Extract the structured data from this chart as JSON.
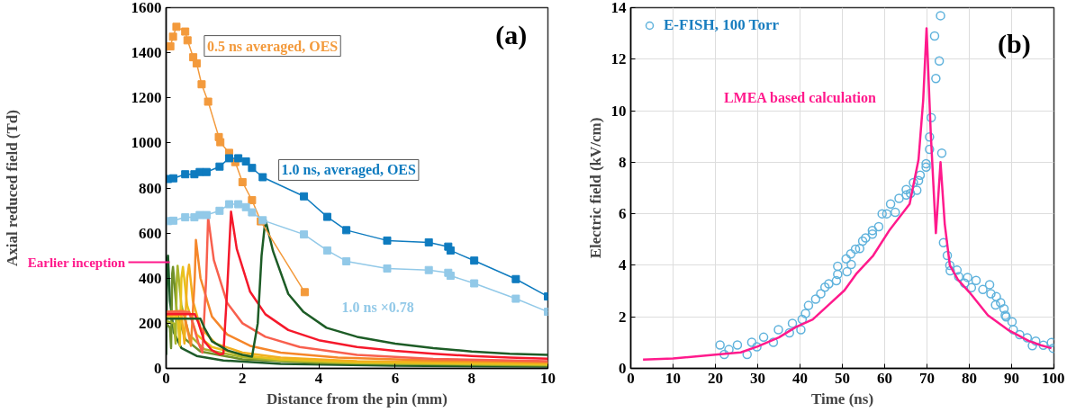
{
  "chart_data": [
    {
      "type": "line",
      "xlabel": "Distance from the pin (mm)",
      "ylabel": "Axial reduced field (Td)",
      "xlim": [
        0,
        10
      ],
      "ylim": [
        0,
        1600
      ],
      "xticks": [
        0,
        2,
        4,
        6,
        8,
        10
      ],
      "yticks": [
        0,
        200,
        400,
        600,
        800,
        1000,
        1200,
        1400,
        1600
      ],
      "grid": false,
      "legend": false,
      "line_style": "solid",
      "annotations": [
        "(a)",
        {
          "text": "Earlier inception",
          "x": 0,
          "y": 470
        }
      ],
      "series": [
        {
          "color": "#1e5b2a",
          "x": [
            0,
            0.03,
            0.05,
            0.1,
            0.2,
            0.4,
            0.8,
            1.5,
            3,
            6,
            10
          ],
          "values": [
            60,
            480,
            500,
            300,
            160,
            90,
            55,
            35,
            20,
            12,
            8
          ]
        },
        {
          "color": "#6f8f2a",
          "x": [
            0,
            0.1,
            0.13,
            0.16,
            0.18,
            0.28,
            0.5,
            0.9,
            2,
            4,
            10
          ],
          "values": [
            200,
            180,
            90,
            420,
            450,
            250,
            130,
            75,
            40,
            24,
            12
          ]
        },
        {
          "color": "#a9b52c",
          "x": [
            0,
            0.2,
            0.25,
            0.28,
            0.3,
            0.4,
            0.6,
            1,
            2,
            3,
            5,
            10
          ],
          "values": [
            210,
            200,
            110,
            400,
            455,
            280,
            150,
            85,
            50,
            34,
            23,
            15
          ]
        },
        {
          "color": "#e8c21c",
          "x": [
            0,
            0.3,
            0.36,
            0.4,
            0.44,
            0.55,
            0.8,
            1.2,
            2,
            3,
            5,
            10
          ],
          "values": [
            220,
            230,
            100,
            400,
            450,
            280,
            150,
            95,
            58,
            40,
            27,
            18
          ]
        },
        {
          "color": "#f2b01e",
          "x": [
            0,
            0.4,
            0.48,
            0.55,
            0.6,
            0.7,
            0.9,
            1.3,
            2,
            3,
            5,
            10
          ],
          "values": [
            230,
            240,
            110,
            400,
            460,
            300,
            180,
            110,
            70,
            48,
            32,
            22
          ]
        },
        {
          "color": "#f5862a",
          "x": [
            0,
            0.45,
            0.55,
            0.65,
            0.75,
            0.78,
            0.9,
            1.2,
            1.6,
            2.2,
            3,
            4.5,
            7,
            10
          ],
          "values": [
            250,
            255,
            180,
            100,
            400,
            570,
            400,
            230,
            150,
            100,
            70,
            48,
            35,
            28
          ]
        },
        {
          "color": "#f8604e",
          "x": [
            0,
            0.6,
            0.7,
            0.85,
            0.95,
            1.05,
            1.1,
            1.25,
            1.6,
            2,
            2.6,
            3.5,
            5,
            7,
            10
          ],
          "values": [
            250,
            250,
            200,
            110,
            70,
            400,
            670,
            480,
            290,
            200,
            140,
            95,
            60,
            42,
            32
          ]
        },
        {
          "color": "#f5192b",
          "x": [
            0,
            0.75,
            0.85,
            1.0,
            1.2,
            1.4,
            1.5,
            1.6,
            1.7,
            1.85,
            2.2,
            2.6,
            3.2,
            4,
            5,
            6,
            7,
            8,
            9,
            10
          ],
          "values": [
            240,
            240,
            200,
            120,
            80,
            62,
            65,
            350,
            695,
            530,
            340,
            240,
            170,
            125,
            95,
            78,
            65,
            55,
            48,
            43
          ]
        },
        {
          "color": "#1d5c26",
          "x": [
            0,
            0.9,
            1.0,
            1.2,
            1.6,
            2.0,
            2.25,
            2.4,
            2.5,
            2.6,
            2.8,
            3.2,
            3.6,
            4.2,
            5,
            6,
            7,
            8,
            9,
            10
          ],
          "values": [
            220,
            220,
            180,
            120,
            80,
            60,
            52,
            200,
            500,
            660,
            520,
            330,
            250,
            180,
            140,
            110,
            90,
            75,
            65,
            60
          ]
        },
        {
          "name": "0.5 ns averaged, OES",
          "color": "#f39a3c",
          "marker": "square",
          "x": [
            0.11,
            0.18,
            0.27,
            0.5,
            0.56,
            0.71,
            0.8,
            0.93,
            1.1,
            1.38,
            1.42,
            1.65,
            1.81,
            2.0,
            2.25,
            2.48,
            3.63
          ],
          "values": [
            1428,
            1471,
            1515,
            1494,
            1455,
            1380,
            1353,
            1260,
            1183,
            1026,
            1003,
            956,
            915,
            826,
            746,
            652,
            338
          ]
        },
        {
          "name": "1.0 ns, averaged, OES",
          "color": "#0e7bbf",
          "marker": "square",
          "x": [
            0.05,
            0.19,
            0.5,
            0.74,
            0.88,
            1.06,
            1.4,
            1.65,
            1.89,
            2.09,
            2.25,
            2.53,
            3.61,
            4.22,
            4.72,
            5.79,
            6.88,
            7.39,
            7.45,
            8.07,
            9.16,
            10
          ],
          "values": [
            840,
            843,
            861,
            861,
            871,
            871,
            895,
            932,
            932,
            918,
            889,
            848,
            763,
            672,
            613,
            567,
            559,
            540,
            523,
            478,
            396,
            319
          ]
        },
        {
          "name": "1.0 ns ×0.78",
          "color": "#92c9e8",
          "marker": "square",
          "x": [
            0.05,
            0.19,
            0.5,
            0.74,
            0.88,
            1.06,
            1.4,
            1.65,
            1.89,
            2.09,
            2.25,
            2.53,
            3.61,
            4.22,
            4.72,
            5.79,
            6.88,
            7.39,
            7.45,
            8.07,
            9.16,
            10
          ],
          "values": [
            653,
            655,
            670,
            670,
            680,
            680,
            699,
            728,
            728,
            715,
            692,
            657,
            594,
            523,
            475,
            443,
            436,
            424,
            411,
            377,
            309,
            251
          ]
        }
      ]
    },
    {
      "type": "line",
      "xlabel": "Time (ns)",
      "ylabel": "Electric field (kV/cm)",
      "xlim": [
        0,
        100
      ],
      "ylim": [
        0,
        14
      ],
      "xticks": [
        0,
        10,
        20,
        30,
        40,
        50,
        60,
        70,
        80,
        90,
        100
      ],
      "yticks": [
        0,
        2,
        4,
        6,
        8,
        10,
        12,
        14
      ],
      "grid": true,
      "legend": "top left",
      "line_style": "solid",
      "annotations": [
        "(b)"
      ],
      "series": [
        {
          "name": "E-FISH, 100 Torr",
          "type": "scatter",
          "marker": "circle",
          "color": "#5fb2dc",
          "x": [
            21.1,
            22.1,
            23.2,
            25.2,
            27.5,
            28.6,
            29.8,
            31.4,
            33.7,
            34.9,
            37.5,
            38.2,
            40.2,
            40.5,
            41.3,
            42,
            43.7,
            44.9,
            45.9,
            46.8,
            48.6,
            48.9,
            48.9,
            50.9,
            51.1,
            52.1,
            52,
            53.1,
            54.1,
            54.8,
            55.5,
            57.1,
            57.1,
            58.6,
            59.4,
            60.5,
            61.4,
            62.5,
            63.4,
            65.1,
            65.1,
            66.1,
            66.8,
            67.6,
            68,
            68.4,
            69.8,
            69.8,
            70.6,
            70.6,
            71,
            71.8,
            72.1,
            72.9,
            73.2,
            73.5,
            73.9,
            74.8,
            75.4,
            75.5,
            77.1,
            77.5,
            78.9,
            79.6,
            80.5,
            81.6,
            83.2,
            84.8,
            85.1,
            86.2,
            86.4,
            87.4,
            88.2,
            88.5,
            88.7,
            90.1,
            90.4,
            91.9,
            93.7,
            94.9,
            95.7,
            97.5,
            99.4,
            99.8
          ],
          "values": [
            0.91,
            0.54,
            0.73,
            0.91,
            0.54,
            1.01,
            0.84,
            1.21,
            1.01,
            1.5,
            1.38,
            1.75,
            1.5,
            1.9,
            2.13,
            2.44,
            2.69,
            2.9,
            3.15,
            3.28,
            3.4,
            3.65,
            3.96,
            4.25,
            3.75,
            4.03,
            4.44,
            4.63,
            4.65,
            4.94,
            5.06,
            5.21,
            5.35,
            5.5,
            6.0,
            6.0,
            6.38,
            6.06,
            6.6,
            6.94,
            6.73,
            6.79,
            7.21,
            6.91,
            7.29,
            7.5,
            7.94,
            7.81,
            8.5,
            8.98,
            9.73,
            12.9,
            11.25,
            11.93,
            13.69,
            8.35,
            4.88,
            4.38,
            4.0,
            3.79,
            3.81,
            3.56,
            3.31,
            3.53,
            3.13,
            3.41,
            3.06,
            3.25,
            2.9,
            2.46,
            2.78,
            2.55,
            2.31,
            2.06,
            2.0,
            1.81,
            1.5,
            1.31,
            1.19,
            0.88,
            1.06,
            0.9,
            1.0,
            0.78
          ]
        },
        {
          "name": "LMEA based calculation",
          "type": "line",
          "color": "#ff1a8c",
          "x": [
            2.9,
            10,
            20,
            26,
            30,
            35,
            39,
            43,
            47,
            50.5,
            53.4,
            57.3,
            61.2,
            65.9,
            68,
            69.1,
            69.9,
            70.9,
            72.1,
            73.2,
            74.2,
            75.4,
            77.3,
            80.1,
            84.4,
            89.1,
            94.1,
            96.9,
            99.4
          ],
          "values": [
            0.34,
            0.38,
            0.53,
            0.62,
            0.85,
            1.2,
            1.6,
            1.9,
            2.5,
            3.03,
            3.69,
            4.38,
            5.38,
            6.38,
            8.1,
            10.4,
            13.2,
            9.1,
            5.25,
            8.0,
            5.6,
            4.0,
            3.44,
            2.94,
            2.06,
            1.5,
            1.06,
            0.9,
            0.78
          ]
        }
      ]
    }
  ]
}
